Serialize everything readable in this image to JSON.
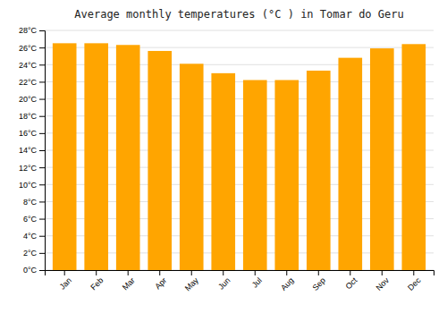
{
  "chart_data": {
    "type": "bar",
    "title": "Average monthly temperatures (°C ) in Tomar do Geru",
    "categories": [
      "Jan",
      "Feb",
      "Mar",
      "Apr",
      "May",
      "Jun",
      "Jul",
      "Aug",
      "Sep",
      "Oct",
      "Nov",
      "Dec"
    ],
    "values": [
      26.5,
      26.5,
      26.3,
      25.6,
      24.1,
      23.0,
      22.2,
      22.2,
      23.3,
      24.8,
      25.9,
      26.4
    ],
    "color": "#FFA500",
    "ylim": [
      0,
      28
    ],
    "yticks": [
      {
        "value": 0,
        "label": "0°C"
      },
      {
        "value": 2,
        "label": "2°C"
      },
      {
        "value": 4,
        "label": "4°C"
      },
      {
        "value": 6,
        "label": "6°C"
      },
      {
        "value": 8,
        "label": "8°C"
      },
      {
        "value": 10,
        "label": "10°C"
      },
      {
        "value": 12,
        "label": "12°C"
      },
      {
        "value": 14,
        "label": "14°C"
      },
      {
        "value": 16,
        "label": "16°C"
      },
      {
        "value": 18,
        "label": "18°C"
      },
      {
        "value": 20,
        "label": "20°C"
      },
      {
        "value": 22,
        "label": "22°C"
      },
      {
        "value": 24,
        "label": "24°C"
      },
      {
        "value": 26,
        "label": "26°C"
      },
      {
        "value": 28,
        "label": "28°C"
      }
    ],
    "grid": true
  }
}
